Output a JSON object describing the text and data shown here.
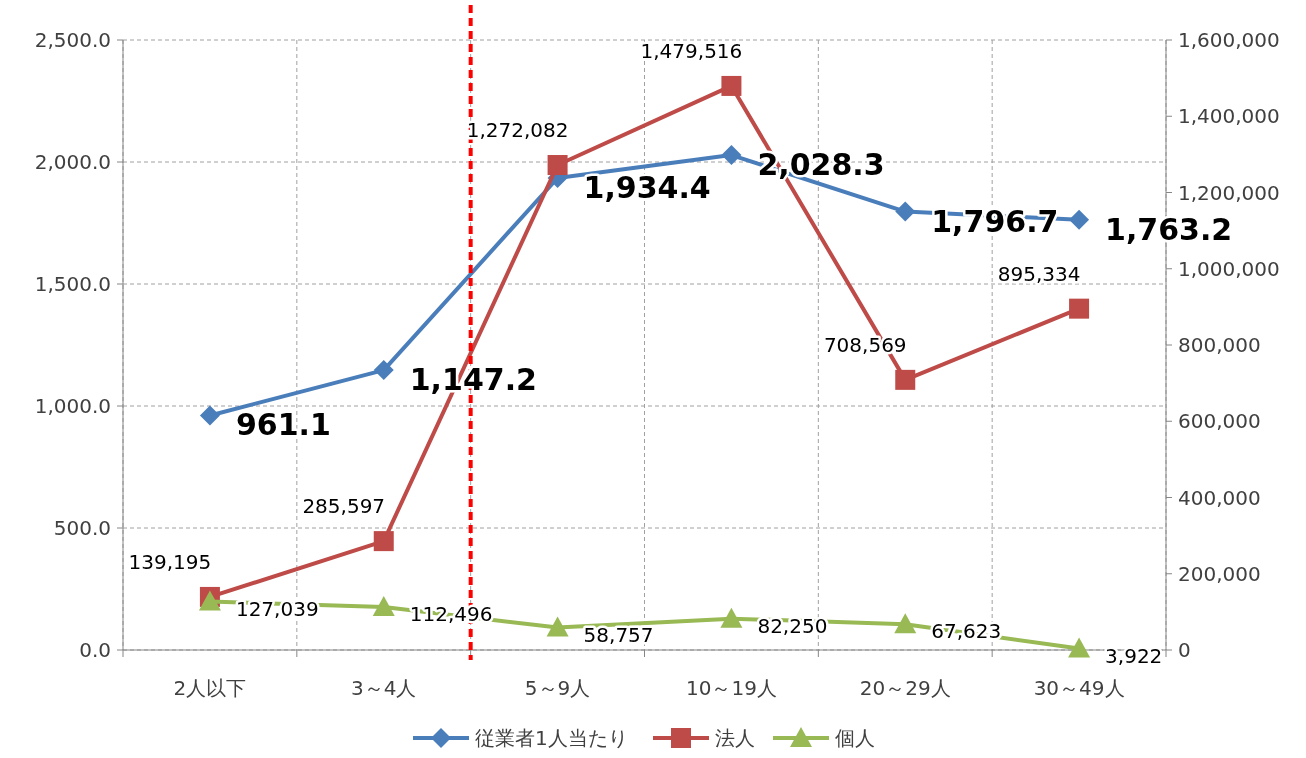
{
  "chart_data": {
    "type": "line",
    "categories": [
      "2人以下",
      "3～4人",
      "5～9人",
      "10～19人",
      "20～29人",
      "30～49人"
    ],
    "series": [
      {
        "name": "従業者1人当たり",
        "color": "#4a7ebb",
        "marker": "diamond",
        "values": [
          961.1,
          1147.2,
          1934.4,
          2028.3,
          1796.7,
          1763.2
        ],
        "value_labels": [
          "961.1",
          "1,147.2",
          "1,934.4",
          "2,028.3",
          "1,796.7",
          "1,763.2"
        ]
      },
      {
        "name": "法人",
        "color": "#be4b48",
        "marker": "square",
        "axis": "y2",
        "values": [
          139195,
          285597,
          1272082,
          1479516,
          708569,
          895334
        ],
        "value_labels": [
          "139,195",
          "285,597",
          "1,272,082",
          "1,479,516",
          "708,569",
          "895,334"
        ]
      },
      {
        "name": "個人",
        "color": "#98b954",
        "marker": "triangle",
        "axis": "y2",
        "values": [
          127039,
          112496,
          58757,
          82250,
          67623,
          3922
        ],
        "value_labels": [
          "127,039",
          "112,496",
          "58,757",
          "82,250",
          "67,623",
          "3,922"
        ]
      }
    ],
    "ylim": [
      0,
      2500
    ],
    "yticks": [
      {
        "value": 0,
        "label": "0.0"
      },
      {
        "value": 500,
        "label": "500.0"
      },
      {
        "value": 1000,
        "label": "1,000.0"
      },
      {
        "value": 1500,
        "label": "1,500.0"
      },
      {
        "value": 2000,
        "label": "2,000.0"
      },
      {
        "value": 2500,
        "label": "2,500.0"
      }
    ],
    "y2lim": [
      0,
      1600000
    ],
    "y2ticks": [
      0,
      {
        "value": 200000,
        "label": "200,000"
      },
      {
        "value": 400000,
        "label": "400,000"
      },
      {
        "value": 600000,
        "label": "600,000"
      },
      {
        "value": 800000,
        "label": "800,000"
      },
      {
        "value": 1000000,
        "label": "1,000,000"
      },
      {
        "value": 1200000,
        "label": "1,200,000"
      },
      {
        "value": 1400000,
        "label": "1,400,000"
      },
      {
        "value": 1600000,
        "label": "1,600,000"
      }
    ],
    "grid": true,
    "legend": "bottom",
    "line_style": "solid"
  }
}
